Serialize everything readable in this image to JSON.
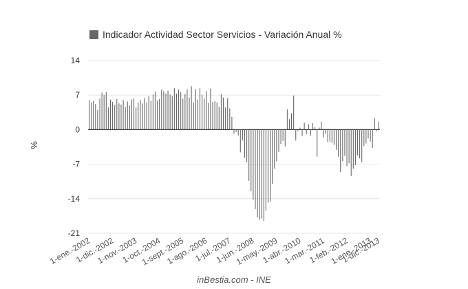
{
  "chart_data": {
    "type": "bar",
    "series": [
      {
        "name": "Indicador Actividad Sector Servicios - Variación Anual %",
        "color": "#666666",
        "start": "2002-01",
        "frequency": "monthly",
        "values": [
          6.0,
          5.5,
          5.8,
          5.2,
          4.0,
          6.3,
          7.5,
          7.0,
          7.6,
          4.5,
          6.1,
          5.6,
          5.0,
          6.2,
          5.3,
          5.1,
          6.0,
          4.6,
          5.7,
          4.9,
          6.1,
          6.3,
          4.5,
          5.5,
          6.0,
          5.3,
          6.4,
          5.5,
          6.8,
          5.8,
          7.1,
          7.7,
          5.9,
          6.2,
          8.1,
          7.8,
          7.3,
          7.9,
          7.1,
          6.8,
          8.4,
          7.3,
          8.1,
          7.6,
          6.3,
          7.2,
          8.2,
          6.5,
          8.8,
          5.5,
          8.2,
          6.1,
          8.4,
          7.1,
          6.3,
          7.8,
          5.4,
          8.3,
          5.6,
          5.8,
          5.5,
          4.6,
          7.2,
          6.5,
          4.5,
          6.4,
          4.3,
          2.6,
          -0.8,
          -0.5,
          -1.2,
          -4.6,
          -2.2,
          -5.7,
          -6.6,
          -10.4,
          -12.5,
          -14.2,
          -16.1,
          -17.8,
          -18.3,
          -18.0,
          -18.5,
          -16.4,
          -14.8,
          -14.6,
          -11.0,
          -7.9,
          -6.4,
          -4.5,
          -2.9,
          -2.3,
          -3.4,
          4.1,
          2.1,
          3.3,
          6.9,
          -2.2,
          -0.3,
          0.4,
          -1.3,
          1.4,
          -0.9,
          1.1,
          -1.2,
          1.3,
          0.5,
          -5.5,
          0.4,
          1.6,
          -1.6,
          -0.8,
          -2.5,
          -2.4,
          -2.7,
          -3.1,
          -4.1,
          -5.5,
          -8.6,
          -6.4,
          -5.3,
          -7.4,
          -6.8,
          -9.4,
          -7.9,
          -7.2,
          -5.2,
          -5.8,
          -6.6,
          -3.3,
          -2.8,
          -1.8,
          -2.4,
          -3.7,
          2.3,
          -0.3,
          1.6
        ]
      }
    ],
    "x_tick_labels": [
      "1-ene.-2002",
      "1-dic.-2002",
      "1-nov.-2003",
      "1-oct.-2004",
      "1-sept.-2005",
      "1-ago.-2006",
      "1-jul.-2007",
      "1-jun.-2008",
      "1-may.-2009",
      "1-abr.-2010",
      "1-mar.-2011",
      "1-feb.-2012",
      "1-ene.-2013",
      "1-dic.-2013"
    ],
    "y_ticks": [
      14,
      7,
      0,
      -7,
      -14,
      -21
    ],
    "ylim": [
      -21,
      14
    ],
    "ylabel": "%",
    "legend_position": "top-left",
    "grid": true
  },
  "source_label": "inBestia.com - INE"
}
